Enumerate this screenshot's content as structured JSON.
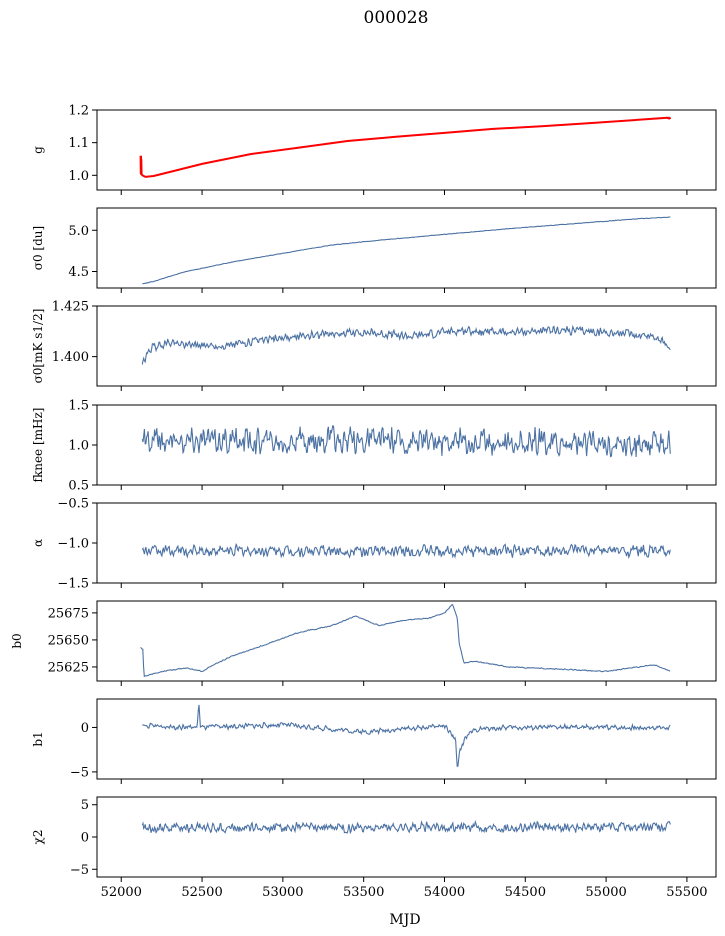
{
  "figure": {
    "title": "000028",
    "xlabel": "MJD"
  },
  "colors": {
    "series": "#4c72a4",
    "fit": "#ff0000",
    "axis": "#000000"
  },
  "chart_data": [
    {
      "type": "line",
      "ylabel": "g",
      "ylabel_html": "g",
      "xlim": [
        51850,
        55680
      ],
      "ylim": [
        0.955,
        1.2
      ],
      "yticks": [
        1.0,
        1.1,
        1.2
      ],
      "ytick_labels": [
        "1.0",
        "1.1",
        "1.2"
      ],
      "series": [
        {
          "values_x": [
            52120,
            52130,
            52150,
            52200,
            52300,
            52500,
            52800,
            53100,
            53400,
            53700,
            54000,
            54300,
            54600,
            54900,
            55200,
            55400
          ],
          "values_y": [
            1.005,
            1.0,
            0.995,
            0.998,
            1.01,
            1.035,
            1.065,
            1.085,
            1.105,
            1.118,
            1.13,
            1.142,
            1.15,
            1.16,
            1.17,
            1.178
          ]
        }
      ],
      "fit": {
        "values_x": [
          52120,
          52121,
          52122,
          52123,
          52124,
          52126,
          52130,
          52150,
          52200,
          52300,
          52500,
          52800,
          53100,
          53400,
          53700,
          54000,
          54300,
          54600,
          54900,
          55200,
          55380,
          55390,
          55400
        ],
        "values_y": [
          1.06,
          1.005,
          1.06,
          1.002,
          1.05,
          1.004,
          1.0,
          0.995,
          0.998,
          1.01,
          1.035,
          1.065,
          1.085,
          1.105,
          1.118,
          1.13,
          1.142,
          1.15,
          1.16,
          1.17,
          1.176,
          1.174,
          1.176
        ]
      }
    },
    {
      "type": "line",
      "ylabel": "σ0 [du]",
      "ylabel_html": "σ0 [du]",
      "xlim": [
        51850,
        55680
      ],
      "ylim": [
        4.3,
        5.27
      ],
      "yticks": [
        4.5,
        5.0
      ],
      "ytick_labels": [
        "4.5",
        "5.0"
      ],
      "series": [
        {
          "values_x": [
            52130,
            52200,
            52400,
            52700,
            53000,
            53300,
            53600,
            54000,
            54400,
            54800,
            55200,
            55400
          ],
          "values_y": [
            4.35,
            4.38,
            4.5,
            4.62,
            4.72,
            4.82,
            4.88,
            4.95,
            5.02,
            5.08,
            5.14,
            5.16
          ]
        }
      ]
    },
    {
      "type": "line",
      "ylabel": "σ0[mK s1/2]",
      "ylabel_html": "σ0[mK s1/2]",
      "xlim": [
        51850,
        55680
      ],
      "ylim": [
        1.3855,
        1.425
      ],
      "yticks": [
        1.4,
        1.425
      ],
      "ytick_labels": [
        "1.400",
        "1.425"
      ],
      "series": [
        {
          "values_x": [
            52130,
            52180,
            52300,
            52600,
            52900,
            53200,
            53500,
            53800,
            54100,
            54400,
            54700,
            55000,
            55300,
            55400
          ],
          "values_y": [
            1.396,
            1.404,
            1.407,
            1.405,
            1.408,
            1.411,
            1.412,
            1.41,
            1.413,
            1.412,
            1.413,
            1.412,
            1.41,
            1.404
          ]
        }
      ]
    },
    {
      "type": "line",
      "ylabel": "fknee [mHz]",
      "ylabel_html": "fknee [mHz]",
      "xlim": [
        51850,
        55680
      ],
      "ylim": [
        0.5,
        1.5
      ],
      "yticks": [
        0.5,
        1.0,
        1.5
      ],
      "ytick_labels": [
        "0.5",
        "1.0",
        "1.5"
      ],
      "series": [
        {
          "values_x": [
            52130,
            53000,
            54000,
            55400
          ],
          "values_y": [
            1.05,
            1.05,
            1.05,
            1.0
          ]
        }
      ]
    },
    {
      "type": "line",
      "ylabel": "α",
      "ylabel_html": "α",
      "xlim": [
        51850,
        55680
      ],
      "ylim": [
        -1.5,
        -0.5
      ],
      "yticks": [
        -1.5,
        -1.0,
        -0.5
      ],
      "ytick_labels": [
        "−1.5",
        "−1.0",
        "−0.5"
      ],
      "series": [
        {
          "values_x": [
            52130,
            53000,
            54000,
            55400
          ],
          "values_y": [
            -1.1,
            -1.1,
            -1.1,
            -1.1
          ]
        }
      ]
    },
    {
      "type": "line",
      "ylabel": "b0",
      "ylabel_html": "b0",
      "xlim": [
        51850,
        55680
      ],
      "ylim": [
        25612,
        25686
      ],
      "yticks": [
        25625,
        25650,
        25675
      ],
      "ytick_labels": [
        "25625",
        "25650",
        "25675"
      ],
      "series": [
        {
          "values_x": [
            52120,
            52135,
            52140,
            52200,
            52300,
            52400,
            52500,
            52600,
            52700,
            52900,
            53100,
            53300,
            53450,
            53600,
            53700,
            53800,
            53900,
            54000,
            54050,
            54080,
            54090,
            54120,
            54200,
            54400,
            54700,
            55000,
            55300,
            55400
          ],
          "values_y": [
            25643,
            25641,
            25616,
            25619,
            25622,
            25624,
            25621,
            25629,
            25636,
            25646,
            25657,
            25663,
            25672,
            25663,
            25667,
            25669,
            25670,
            25675,
            25683,
            25670,
            25648,
            25629,
            25630,
            25625,
            25623,
            25621,
            25627,
            25621
          ]
        }
      ]
    },
    {
      "type": "line",
      "ylabel": "b1",
      "ylabel_html": "b1",
      "xlim": [
        51850,
        55680
      ],
      "ylim": [
        -5.8,
        3.2
      ],
      "yticks": [
        -5,
        0
      ],
      "ytick_labels": [
        "−5",
        "0"
      ],
      "series": [
        {
          "values_x": [
            52130,
            52470,
            52480,
            52490,
            53000,
            53500,
            54000,
            54070,
            54080,
            54090,
            54130,
            54200,
            54400,
            55400
          ],
          "values_y": [
            0.2,
            0.0,
            3.0,
            0.0,
            0.3,
            -0.5,
            0.2,
            -1.5,
            -5.2,
            -3.0,
            -1.0,
            -0.2,
            0.0,
            0.0
          ]
        }
      ]
    },
    {
      "type": "line",
      "ylabel": "χ2",
      "ylabel_html": "χ2",
      "xlim": [
        51850,
        55680
      ],
      "ylim": [
        -6.2,
        6.2
      ],
      "yticks": [
        -5,
        0,
        5
      ],
      "ytick_labels": [
        "−5",
        "0",
        "5"
      ],
      "series": [
        {
          "values_x": [
            52130,
            53000,
            54000,
            55400
          ],
          "values_y": [
            1.5,
            1.5,
            1.5,
            1.5
          ]
        }
      ]
    }
  ],
  "shared_x": {
    "xticks": [
      52000,
      52500,
      53000,
      53500,
      54000,
      54500,
      55000,
      55500
    ],
    "xtick_labels": [
      "52000",
      "52500",
      "53000",
      "53500",
      "54000",
      "54500",
      "55000",
      "55500"
    ]
  }
}
